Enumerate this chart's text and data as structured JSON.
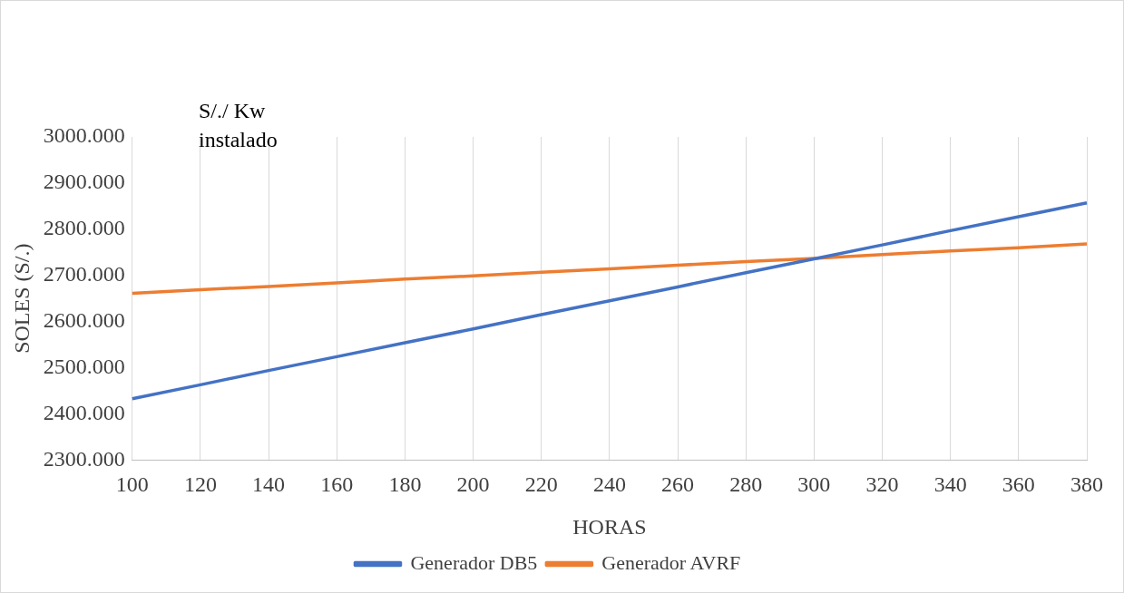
{
  "chart_data": {
    "type": "line",
    "xlabel": "HORAS",
    "ylabel": "SOLES (S/.)",
    "annotations": [
      "S/./ Kw instalado"
    ],
    "categories": [
      "100",
      "120",
      "140",
      "160",
      "180",
      "200",
      "220",
      "240",
      "260",
      "280",
      "300",
      "320",
      "340",
      "360",
      "380"
    ],
    "series": [
      {
        "name": "Generador DB5",
        "color": "#4472c4",
        "values": [
          2433,
          2463,
          2494,
          2524,
          2554,
          2584,
          2615,
          2645,
          2675,
          2706,
          2736,
          2766,
          2797,
          2827,
          2857
        ]
      },
      {
        "name": "Generador AVRF",
        "color": "#ed7d31",
        "values": [
          2661,
          2669,
          2676,
          2684,
          2692,
          2699,
          2707,
          2714,
          2722,
          2730,
          2737,
          2745,
          2753,
          2760,
          2768
        ]
      }
    ],
    "ylim": [
      2300,
      3000
    ],
    "yticks": [
      {
        "value": 2300,
        "label": "2300.000"
      },
      {
        "value": 2400,
        "label": "2400.000"
      },
      {
        "value": 2500,
        "label": "2500.000"
      },
      {
        "value": 2600,
        "label": "2600.000"
      },
      {
        "value": 2700,
        "label": "2700.000"
      },
      {
        "value": 2800,
        "label": "2800.000"
      },
      {
        "value": 2900,
        "label": "2900.000"
      },
      {
        "value": 3000,
        "label": "3000.000"
      }
    ],
    "grid": "x",
    "legend": "bottom",
    "marker": "none",
    "line_style": "solid"
  }
}
